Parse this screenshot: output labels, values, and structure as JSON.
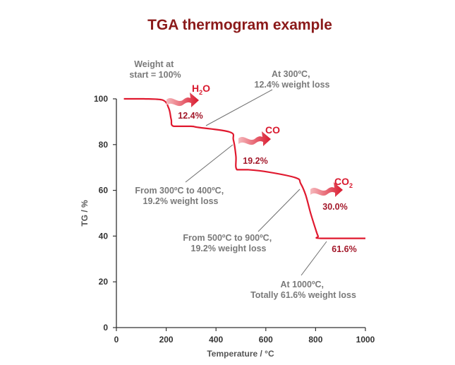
{
  "chart_data": {
    "type": "line",
    "title": "TGA thermogram example",
    "xlabel": "Temperature / °C",
    "ylabel": "TG / %",
    "xlim": [
      0,
      1000
    ],
    "ylim": [
      0,
      100
    ],
    "xticks": [
      "0",
      "200",
      "400",
      "600",
      "800",
      "1000"
    ],
    "yticks": [
      "0",
      "20",
      "40",
      "60",
      "80",
      "100"
    ],
    "grid": false,
    "series": [
      {
        "color": "#e0192f",
        "x": [
          30,
          110,
          185,
          210,
          220,
          230,
          300,
          330,
          455,
          470,
          480,
          484,
          530,
          610,
          720,
          740,
          760,
          780,
          800,
          810,
          820,
          1000
        ],
        "y": [
          100,
          100,
          99.5,
          96,
          91,
          88,
          88,
          87.5,
          85.5,
          82,
          75,
          69,
          69,
          68,
          65.5,
          63,
          58,
          50,
          43,
          40,
          39,
          39
        ]
      }
    ],
    "annotations": {
      "start_note": [
        "Weight at",
        "start = 100%"
      ],
      "at300_note": [
        "At 300ºC,",
        "12.4% weight loss"
      ],
      "range1_note": [
        "From 300ºC to 400ºC,",
        "19.2% weight loss"
      ],
      "range2_note": [
        "From 500ºC to 900ºC,",
        "19.2% weight loss"
      ],
      "end_note": [
        "At 1000ºC,",
        "Totally 61.6% weight loss"
      ],
      "loss_1": "12.4%",
      "loss_2": "19.2%",
      "loss_3": "30.0%",
      "total_loss": "61.6%",
      "gas_1": {
        "main": "H",
        "sub": "2",
        "tail": "O"
      },
      "gas_2": {
        "main": "CO",
        "sub": "",
        "tail": ""
      },
      "gas_3": {
        "main": "CO",
        "sub": "2",
        "tail": ""
      }
    }
  }
}
